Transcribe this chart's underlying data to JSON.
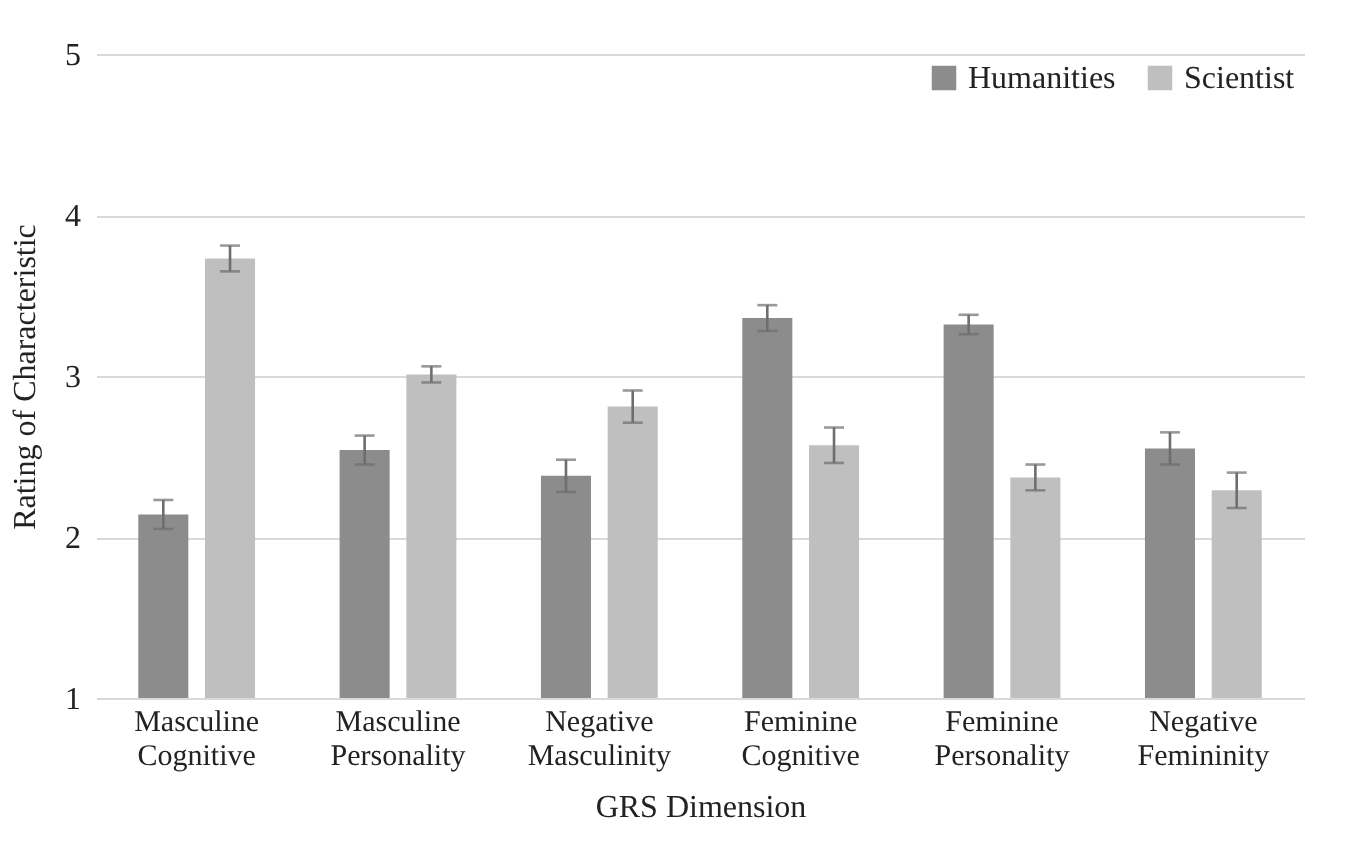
{
  "chart_data": {
    "type": "bar",
    "xlabel": "GRS Dimension",
    "ylabel": "Rating of Characteristic",
    "categories": [
      "Masculine Cognitive",
      "Masculine Personality",
      "Negative Masculinity",
      "Feminine Cognitive",
      "Feminine Personality",
      "Negative Femininity"
    ],
    "series": [
      {
        "name": "Humanities",
        "color": "#8c8c8c",
        "values": [
          2.14,
          2.54,
          2.38,
          3.36,
          3.32,
          2.55
        ],
        "errors": [
          0.09,
          0.09,
          0.1,
          0.08,
          0.06,
          0.1
        ]
      },
      {
        "name": "Scientist",
        "color": "#bfbfbf",
        "values": [
          3.73,
          3.01,
          2.81,
          2.57,
          2.37,
          2.29
        ],
        "errors": [
          0.08,
          0.05,
          0.1,
          0.11,
          0.08,
          0.11
        ]
      }
    ],
    "ylim": [
      1,
      5
    ],
    "yticks": [
      1,
      2,
      3,
      4,
      5
    ],
    "grid": "y",
    "legend": "top right"
  }
}
